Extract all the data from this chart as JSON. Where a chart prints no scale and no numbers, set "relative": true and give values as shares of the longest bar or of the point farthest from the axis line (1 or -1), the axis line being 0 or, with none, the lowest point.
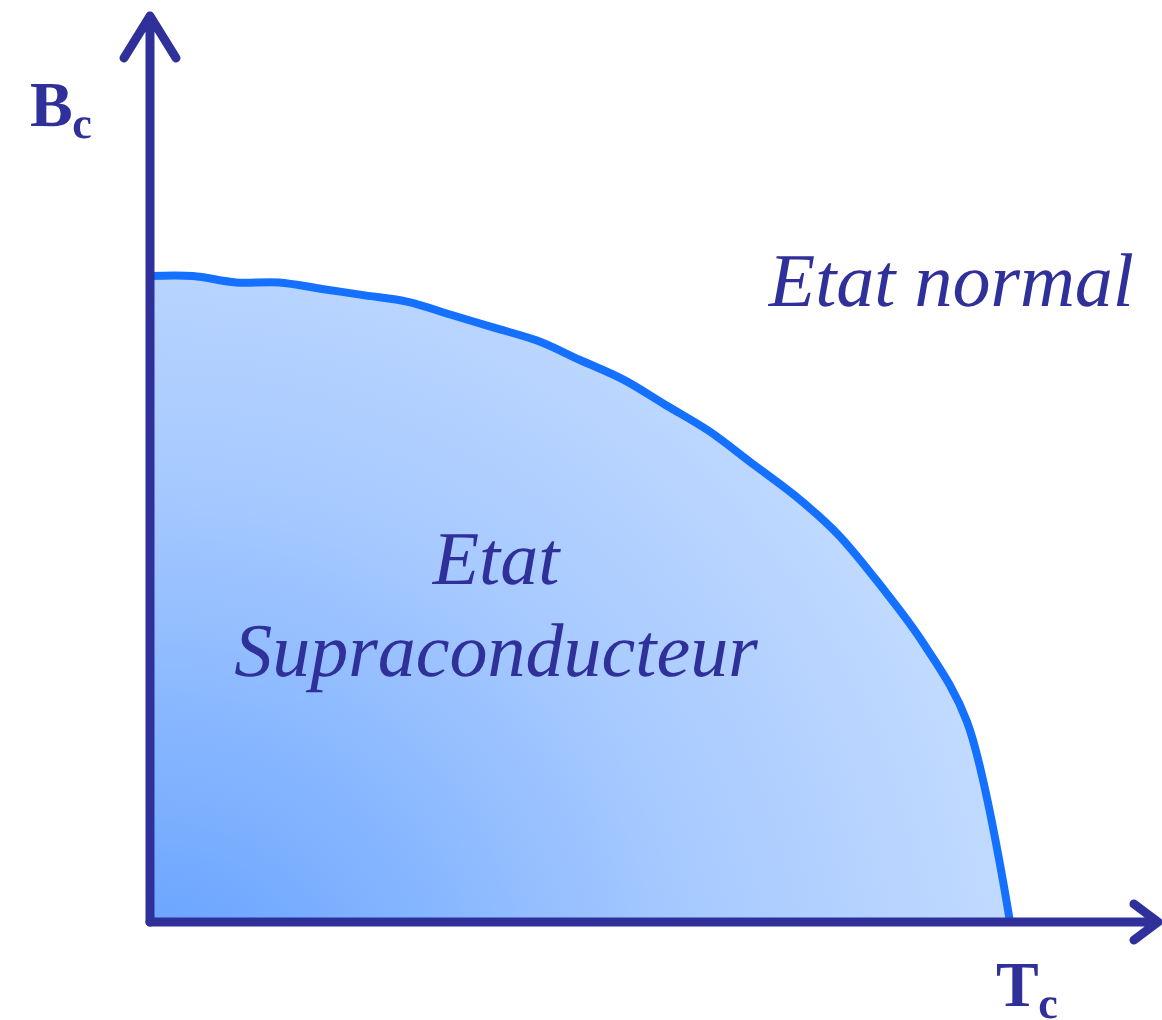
{
  "chart_data": {
    "type": "area",
    "relative": true,
    "xlabel": "T$_{c}$",
    "ylabel": "B$_{c}$",
    "annotations": [
      "Etat normal",
      "Etat Supraconducteur"
    ],
    "categories": [
      null,
      null,
      null,
      null,
      null,
      null,
      null,
      null,
      null,
      null,
      null,
      null,
      null,
      null,
      null,
      null,
      null,
      null,
      null,
      null,
      null
    ],
    "series": [
      {
        "color": "#1470ff",
        "values": [
          1.0,
          1.0,
          0.99,
          0.99,
          0.98,
          0.97,
          0.96,
          0.94,
          0.92,
          0.9,
          0.87,
          0.84,
          0.8,
          0.76,
          0.71,
          0.66,
          0.6,
          0.52,
          0.43,
          0.31,
          0
        ]
      }
    ]
  }
}
